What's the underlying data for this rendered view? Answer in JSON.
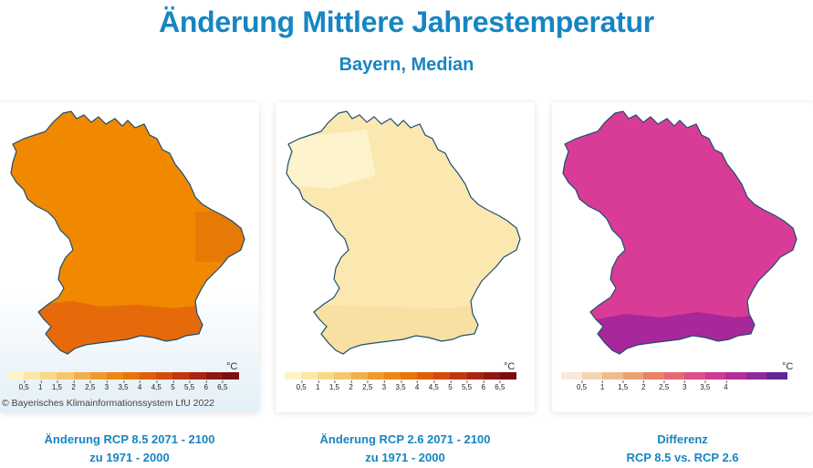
{
  "header": {
    "title": "Änderung Mittlere Jahrestemperatur",
    "subtitle": "Bayern, Median"
  },
  "panels": [
    {
      "unit": "°C",
      "base_color": "#f08900",
      "south_color": "#e66a0a",
      "east_color": "#e67a05",
      "legend_colors": [
        "#fff4c4",
        "#fbe8a6",
        "#f8d98a",
        "#f5c76c",
        "#f2b04d",
        "#ee9a2c",
        "#ec8714",
        "#e8740a",
        "#e05e0b",
        "#d34b0c",
        "#c0370d",
        "#a82610",
        "#8f1712",
        "#780e12"
      ],
      "ticks": [
        "0,5",
        "1",
        "1,5",
        "2",
        "2,5",
        "3",
        "3,5",
        "4",
        "4,5",
        "5",
        "5,5",
        "6",
        "6,5"
      ],
      "copyright": "© Bayerisches Klimainformationssystem LfU 2022",
      "caption_line1": "Änderung RCP 8.5 2071 - 2100",
      "caption_line2": "zu 1971 - 2000"
    },
    {
      "unit": "°C",
      "base_color": "#fbe8b0",
      "north_color": "#fdf3cc",
      "south_color": "#f8e0a3",
      "legend_colors": [
        "#fff4c4",
        "#fbe8a6",
        "#f8d98a",
        "#f5c76c",
        "#f2b04d",
        "#ee9a2c",
        "#ec8714",
        "#e8740a",
        "#e05e0b",
        "#d34b0c",
        "#c0370d",
        "#a82610",
        "#8f1712",
        "#780e12"
      ],
      "ticks": [
        "0,5",
        "1",
        "1,5",
        "2",
        "2,5",
        "3",
        "3,5",
        "4",
        "4,5",
        "5",
        "5,5",
        "6",
        "6,5"
      ],
      "caption_line1": "Änderung RCP 2.6 2071 - 2100",
      "caption_line2": "zu 1971 - 2000"
    },
    {
      "unit": "°C",
      "base_color": "#d83c96",
      "south_color": "#a8279a",
      "legend_colors": [
        "#fae8d8",
        "#f4d4b5",
        "#efbd8d",
        "#eba271",
        "#e88366",
        "#e36a74",
        "#dc5088",
        "#cc3b95",
        "#b22e9b",
        "#8e2a9c",
        "#612693"
      ],
      "ticks": [
        "0,5",
        "1",
        "1,5",
        "2",
        "2,5",
        "3",
        "3,5",
        "4"
      ],
      "caption_line1": "Differenz",
      "caption_line2": "RCP 8.5 vs. RCP 2.6"
    }
  ]
}
